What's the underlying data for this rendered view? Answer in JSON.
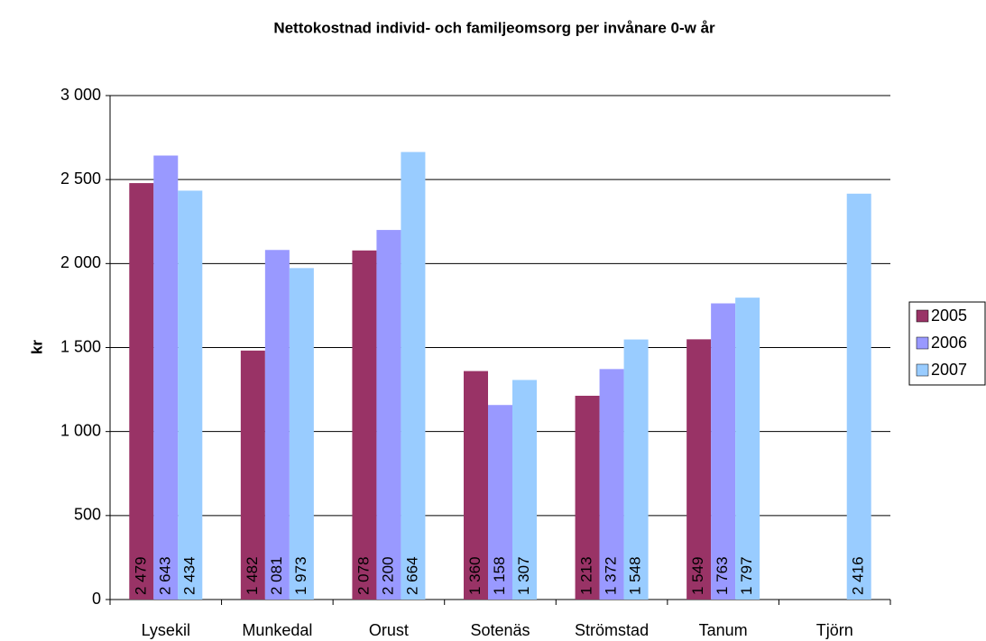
{
  "chart_data": {
    "type": "bar",
    "title": "Nettokostnad individ- och familjeomsorg per invånare 0-w år",
    "y_label": "kr",
    "categories": [
      "Lysekil",
      "Munkedal",
      "Orust",
      "Sotenäs",
      "Strömstad",
      "Tanum",
      "Tjörn"
    ],
    "series": [
      {
        "name": "2005",
        "color": "#993366",
        "values": [
          2479,
          1482,
          2078,
          1360,
          1213,
          1549,
          null
        ],
        "value_labels": [
          "2 479",
          "1 482",
          "2 078",
          "1 360",
          "1 213",
          "1 549",
          null
        ]
      },
      {
        "name": "2006",
        "color": "#9999ff",
        "values": [
          2643,
          2081,
          2200,
          1158,
          1372,
          1763,
          null
        ],
        "value_labels": [
          "2 643",
          "2 081",
          "2 200",
          "1 158",
          "1 372",
          "1 763",
          null
        ]
      },
      {
        "name": "2007",
        "color": "#99ccff",
        "values": [
          2434,
          1973,
          2664,
          1307,
          1548,
          1797,
          2416
        ],
        "value_labels": [
          "2 434",
          "1 973",
          "2 664",
          "1 307",
          "1 548",
          "1 797",
          "2 416"
        ]
      }
    ],
    "ylim": [
      0,
      3000
    ],
    "yticks": [
      0,
      500,
      {
        "value": 1000,
        "label": "1 000"
      },
      {
        "value": 1500,
        "label": "1 500"
      },
      {
        "value": 2000,
        "label": "2 000"
      },
      {
        "value": 2500,
        "label": "2 500"
      },
      {
        "value": 3000,
        "label": "3 000"
      }
    ],
    "grid": true,
    "legend": "right"
  }
}
